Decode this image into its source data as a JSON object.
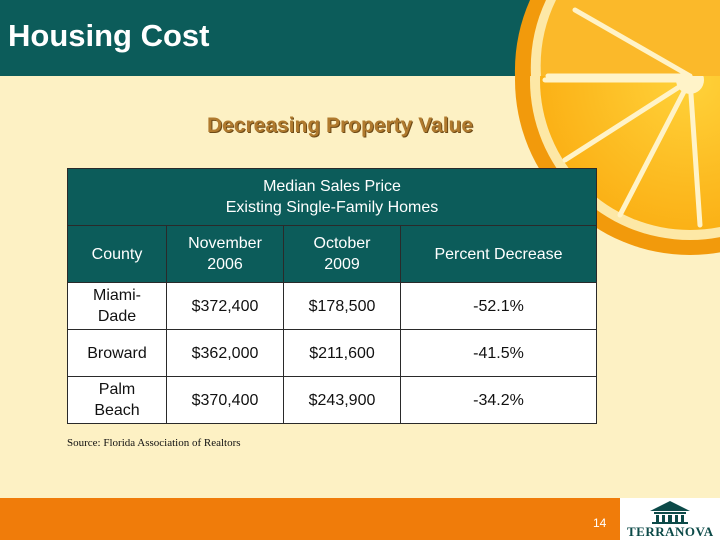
{
  "slide": {
    "title": "Housing Cost",
    "subtitle": "Decreasing Property Value",
    "page_number": "14",
    "source_note": "Source: Florida Association of Realtors",
    "logo_text": "TERRANOVA"
  },
  "table": {
    "caption_line1": "Median Sales Price",
    "caption_line2": "Existing Single-Family Homes",
    "headers": {
      "county": "County",
      "nov_line1": "November",
      "nov_line2": "2006",
      "oct_line1": "October",
      "oct_line2": "2009",
      "pct": "Percent Decrease"
    },
    "rows": [
      {
        "county_line1": "Miami-",
        "county_line2": "Dade",
        "nov_2006": "$372,400",
        "oct_2009": "$178,500",
        "pct": "-52.1%"
      },
      {
        "county_line1": "Broward",
        "county_line2": "",
        "nov_2006": "$362,000",
        "oct_2009": "$211,600",
        "pct": "-41.5%"
      },
      {
        "county_line1": "Palm",
        "county_line2": "Beach",
        "nov_2006": "$370,400",
        "oct_2009": "$243,900",
        "pct": "-34.2%"
      }
    ]
  },
  "colors": {
    "header_teal": "#0c5c5a",
    "background_cream": "#fdf1c4",
    "footer_orange": "#f07c0a",
    "subtitle_gold": "#b07a2e"
  },
  "icons": {
    "decoration": "orange-slice-image",
    "logo": "terranova-building-logo"
  }
}
